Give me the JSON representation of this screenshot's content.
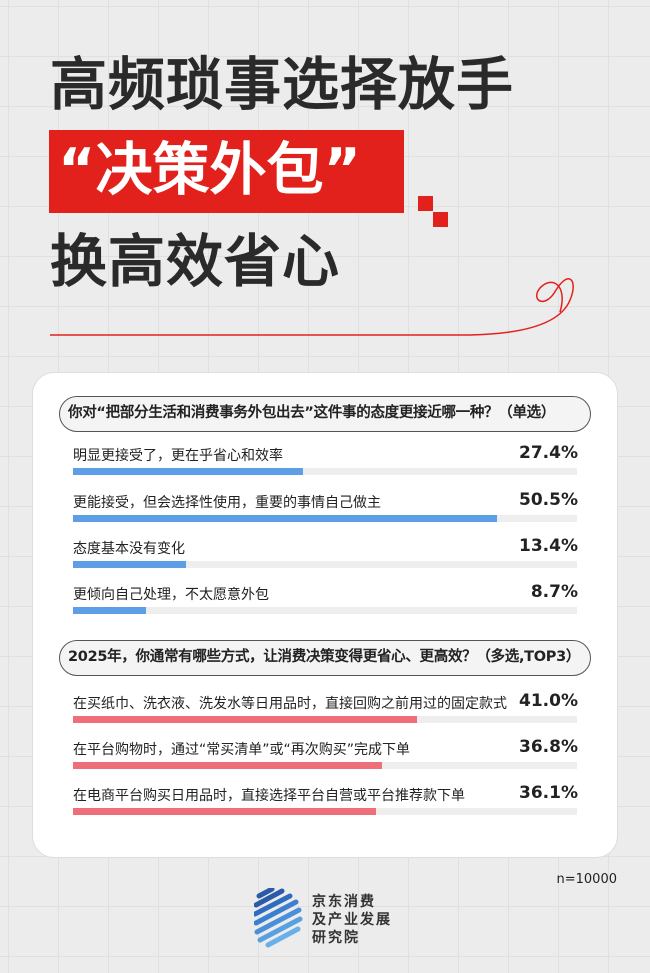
{
  "title": {
    "line1": "高频琐事选择放手",
    "line2": "“决策外包”",
    "line3": "换高效省心"
  },
  "colors": {
    "accent_red": "#e2211c",
    "bar_blue": "#5c9fe6",
    "bar_pink": "#ef6f78",
    "track": "#eeeeee"
  },
  "bar_scale_max_percent": 60,
  "questions": [
    {
      "text": "你对“把部分生活和消费事务外包出去”这件事的态度更接近哪一种？（单选）",
      "color": "#5c9fe6",
      "options": [
        {
          "label": "明显更接受了，更在乎省心和效率",
          "value": "27.4%",
          "pct": 27.4
        },
        {
          "label": "更能接受，但会选择性使用，重要的事情自己做主",
          "value": "50.5%",
          "pct": 50.5
        },
        {
          "label": "态度基本没有变化",
          "value": "13.4%",
          "pct": 13.4
        },
        {
          "label": "更倾向自己处理，不太愿意外包",
          "value": "8.7%",
          "pct": 8.7
        }
      ]
    },
    {
      "text": "2025年，你通常有哪些方式，让消费决策变得更省心、更高效？（多选,TOP3）",
      "color": "#ef6f78",
      "options": [
        {
          "label": "在买纸巾、洗衣液、洗发水等日用品时，直接回购之前用过的固定款式",
          "value": "41.0%",
          "pct": 41.0
        },
        {
          "label": "在平台购物时，通过“常买清单”或“再次购买”完成下单",
          "value": "36.8%",
          "pct": 36.8
        },
        {
          "label": "在电商平台购买日用品时，直接选择平台自营或平台推荐款下单",
          "value": "36.1%",
          "pct": 36.1
        }
      ]
    }
  ],
  "sample": "n=10000",
  "logo": {
    "line1": "京东消费",
    "line2": "及产业发展",
    "line3": "研究院",
    "icon": "striped-circle-logo"
  }
}
